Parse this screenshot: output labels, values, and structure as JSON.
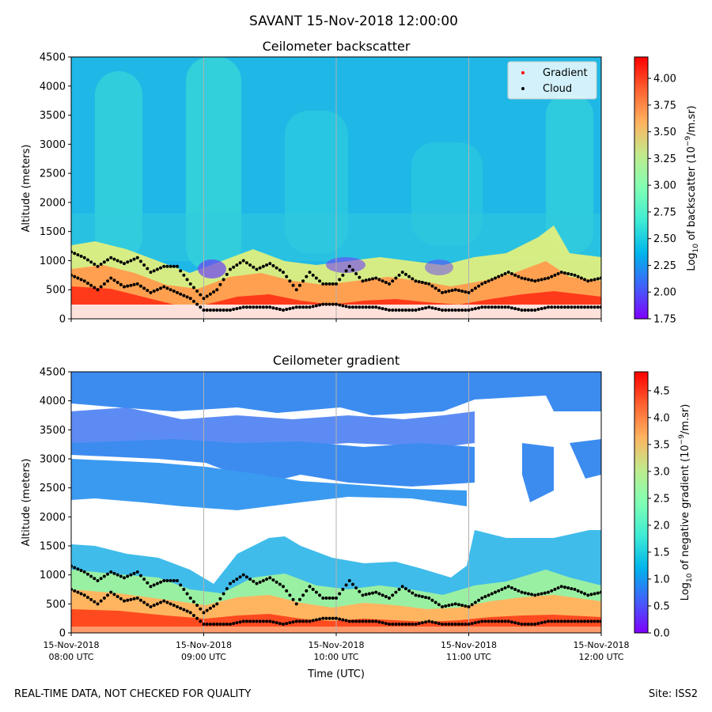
{
  "suptitle": "SAVANT 15-Nov-2018 12:00:00",
  "footer": {
    "left": "REAL-TIME DATA, NOT CHECKED FOR QUALITY",
    "right": "Site: ISS2"
  },
  "colors": {
    "gradient_marker": "#ff0000",
    "cloud_marker": "#000000",
    "colormap": [
      "#8000ff",
      "#4062fa",
      "#00b5eb",
      "#40ecd4",
      "#80ffb4",
      "#c0eb8d",
      "#ffb360",
      "#ff6230",
      "#ff0000"
    ]
  },
  "chart_data": [
    {
      "type": "heatmap",
      "title": "Ceilometer backscatter",
      "ylabel": "Altitude (meters)",
      "xlabel": "",
      "ylim": [
        0,
        4500
      ],
      "yticks": [
        "0",
        "500",
        "1000",
        "1500",
        "2000",
        "2500",
        "3000",
        "3500",
        "4000",
        "4500"
      ],
      "x_range": [
        "15-Nov-2018 08:00 UTC",
        "15-Nov-2018 12:00 UTC"
      ],
      "colorbar": {
        "label_prefix": "Log",
        "label_sub": "10",
        "label_mid": " of backscatter (10",
        "label_sup": "−9",
        "label_suffix": "/m.sr)",
        "range": [
          1.75,
          4.2
        ],
        "ticks": [
          "1.75",
          "2.00",
          "2.25",
          "2.50",
          "2.75",
          "3.00",
          "3.25",
          "3.50",
          "3.75",
          "4.00"
        ]
      },
      "legend": {
        "placement": "top-right",
        "entries": [
          {
            "label": "Gradient",
            "color": "#ff0000"
          },
          {
            "label": "Cloud",
            "color": "#000000"
          }
        ]
      },
      "grid": "vertical at hour ticks"
    },
    {
      "type": "heatmap",
      "title": "Ceilometer gradient",
      "ylabel": "Altitude (meters)",
      "xlabel": "Time (UTC)",
      "ylim": [
        0,
        4500
      ],
      "yticks": [
        "0",
        "500",
        "1000",
        "1500",
        "2000",
        "2500",
        "3000",
        "3500",
        "4000",
        "4500"
      ],
      "xticks": [
        {
          "line1": "15-Nov-2018",
          "line2": "08:00 UTC"
        },
        {
          "line1": "15-Nov-2018",
          "line2": "09:00 UTC"
        },
        {
          "line1": "15-Nov-2018",
          "line2": "10:00 UTC"
        },
        {
          "line1": "15-Nov-2018",
          "line2": "11:00 UTC"
        },
        {
          "line1": "15-Nov-2018",
          "line2": "12:00 UTC"
        }
      ],
      "colorbar": {
        "label_prefix": "Log",
        "label_sub": "10",
        "label_mid": " of negative gradient (10",
        "label_sup": "−9",
        "label_suffix": "/m.sr)",
        "range": [
          0.0,
          4.85
        ],
        "ticks": [
          "0.0",
          "0.5",
          "1.0",
          "1.5",
          "2.0",
          "2.5",
          "3.0",
          "3.5",
          "4.0",
          "4.5"
        ]
      },
      "grid": "vertical at hour ticks"
    }
  ],
  "cloud_series": {
    "name": "Cloud",
    "x_hours": [
      8.0,
      8.1,
      8.2,
      8.3,
      8.4,
      8.5,
      8.6,
      8.7,
      8.8,
      8.9,
      9.0,
      9.1,
      9.2,
      9.3,
      9.4,
      9.5,
      9.6,
      9.7,
      9.8,
      9.9,
      10.0,
      10.1,
      10.2,
      10.3,
      10.4,
      10.5,
      10.6,
      10.7,
      10.8,
      10.9,
      11.0,
      11.1,
      11.2,
      11.3,
      11.4,
      11.5,
      11.6,
      11.7,
      11.8,
      11.9,
      12.0
    ],
    "upper_m": [
      1150,
      1050,
      900,
      1050,
      950,
      1050,
      800,
      900,
      900,
      600,
      350,
      500,
      850,
      1000,
      850,
      950,
      800,
      500,
      800,
      600,
      600,
      900,
      650,
      700,
      600,
      800,
      650,
      600,
      450,
      500,
      450,
      600,
      700,
      800,
      700,
      650,
      700,
      800,
      750,
      650,
      700
    ],
    "lower_m": [
      750,
      650,
      500,
      700,
      550,
      600,
      450,
      550,
      450,
      350,
      150,
      150,
      150,
      200,
      200,
      200,
      150,
      200,
      200,
      250,
      250,
      200,
      200,
      200,
      150,
      150,
      150,
      200,
      150,
      150,
      150,
      200,
      200,
      200,
      150,
      150,
      200,
      200,
      200,
      200,
      200
    ]
  }
}
